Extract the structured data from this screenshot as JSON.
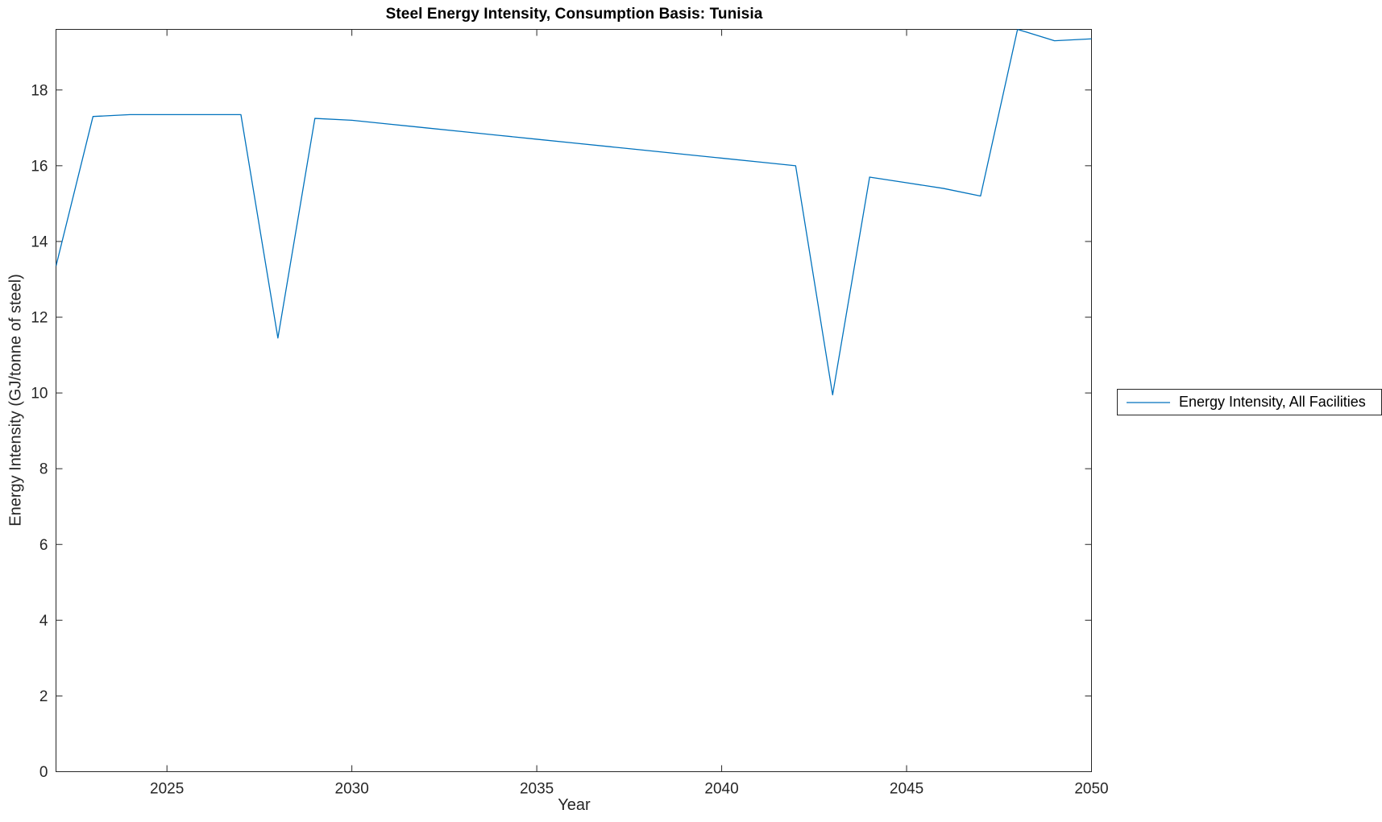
{
  "figure": {
    "title": "Steel Energy Intensity, Consumption Basis: Tunisia",
    "xlabel": "Year",
    "ylabel": "Energy Intensity (GJ/tonne of steel)",
    "legend_label": "Energy Intensity, All Facilities"
  },
  "colors": {
    "line": "#0072BD",
    "axis": "#262626",
    "background": "#ffffff"
  },
  "chart_data": {
    "type": "line",
    "title": "Steel Energy Intensity, Consumption Basis: Tunisia",
    "xlabel": "Year",
    "ylabel": "Energy Intensity (GJ/tonne of steel)",
    "xlim": [
      2022,
      2050
    ],
    "ylim": [
      0,
      19.6
    ],
    "x_ticks": [
      2025,
      2030,
      2035,
      2040,
      2045,
      2050
    ],
    "y_ticks": [
      0,
      2,
      4,
      6,
      8,
      10,
      12,
      14,
      16,
      18
    ],
    "grid": false,
    "legend": {
      "position": "right-outside",
      "entries": [
        "Energy Intensity, All Facilities"
      ]
    },
    "series": [
      {
        "name": "Energy Intensity, All Facilities",
        "x": [
          2022,
          2023,
          2024,
          2025,
          2026,
          2027,
          2028,
          2029,
          2030,
          2031,
          2032,
          2033,
          2034,
          2035,
          2036,
          2037,
          2038,
          2039,
          2040,
          2041,
          2042,
          2043,
          2044,
          2045,
          2046,
          2047,
          2048,
          2049,
          2050
        ],
        "y": [
          13.35,
          17.3,
          17.35,
          17.35,
          17.35,
          17.35,
          11.45,
          17.25,
          17.2,
          17.1,
          17.0,
          16.9,
          16.8,
          16.7,
          16.6,
          16.5,
          16.4,
          16.3,
          16.2,
          16.1,
          16.0,
          9.95,
          15.7,
          15.55,
          15.4,
          15.2,
          19.6,
          19.3,
          19.35
        ]
      }
    ]
  }
}
